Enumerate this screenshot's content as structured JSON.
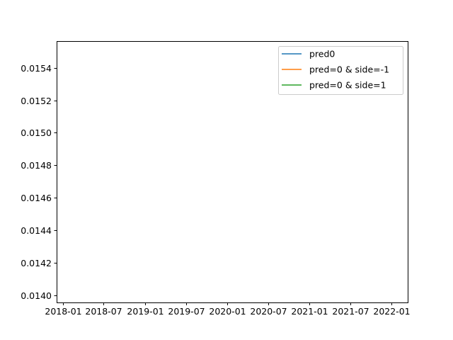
{
  "chart_data": {
    "type": "line",
    "title": "",
    "xlabel": "",
    "ylabel": "",
    "x_ticks": [
      "2018-01",
      "2018-07",
      "2019-01",
      "2019-07",
      "2020-01",
      "2020-07",
      "2021-01",
      "2021-07",
      "2022-01"
    ],
    "xlim": [
      "2017-12-04",
      "2022-03-13"
    ],
    "y_ticks": [
      0.014,
      0.0142,
      0.0144,
      0.0146,
      0.0148,
      0.015,
      0.0152,
      0.0154
    ],
    "y_tick_labels": [
      "0.0140",
      "0.0142",
      "0.0144",
      "0.0146",
      "0.0148",
      "0.0150",
      "0.0152",
      "0.0154"
    ],
    "ylim": [
      0.013955,
      0.015565
    ],
    "grid": false,
    "legend_position": "top-right",
    "series": [
      {
        "name": "pred0",
        "color": "#1f77b4",
        "x": [],
        "values": []
      },
      {
        "name": "pred=0 & side=-1",
        "color": "#ff7f0e",
        "x": [],
        "values": []
      },
      {
        "name": "pred=0 & side=1",
        "color": "#2ca02c",
        "x": [],
        "values": []
      }
    ]
  }
}
